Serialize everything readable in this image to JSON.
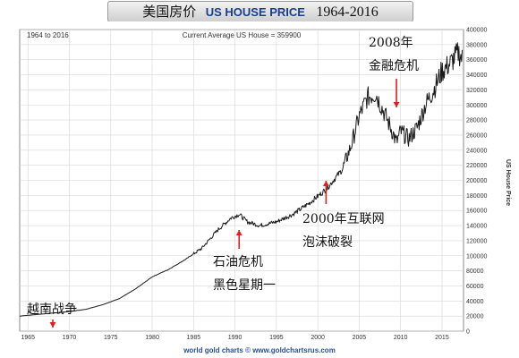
{
  "title": {
    "cn": "美国房价",
    "en": "US HOUSE PRICE",
    "years": "1964-2016"
  },
  "chart_data": {
    "type": "line",
    "range_label": "1964 to 2016",
    "current_label": "Current Average US House = 359900",
    "ylabel": "US House Price",
    "footer": "world gold charts © www.goldchartsrus.com",
    "xlim": [
      1964,
      2017.6
    ],
    "ylim": [
      0,
      400000
    ],
    "x_ticks": [
      1965,
      1970,
      1975,
      1980,
      1985,
      1990,
      1995,
      2000,
      2005,
      2010,
      2015
    ],
    "y_ticks": [
      0,
      20000,
      40000,
      60000,
      80000,
      100000,
      120000,
      140000,
      160000,
      180000,
      200000,
      220000,
      240000,
      260000,
      280000,
      300000,
      320000,
      340000,
      360000,
      380000,
      400000
    ],
    "grid": true,
    "series": [
      {
        "x": [
          1964,
          1966,
          1968,
          1970,
          1972,
          1974,
          1976,
          1978,
          1980,
          1982,
          1984,
          1986,
          1988,
          1989.5,
          1990.5,
          1991.5,
          1993,
          1995,
          1997,
          1999,
          2001,
          2003,
          2004,
          2005,
          2006,
          2007,
          2008,
          2009,
          2009.5,
          2010,
          2011,
          2012,
          2013,
          2014,
          2015,
          2016,
          2017,
          2017.5
        ],
        "y": [
          20000,
          22000,
          24000,
          26000,
          29000,
          35000,
          43000,
          56000,
          72000,
          82000,
          95000,
          110000,
          135000,
          150000,
          155000,
          145000,
          140000,
          145000,
          155000,
          170000,
          188000,
          215000,
          245000,
          285000,
          310000,
          315000,
          290000,
          265000,
          250000,
          265000,
          255000,
          270000,
          300000,
          320000,
          345000,
          355000,
          370000,
          359900
        ]
      }
    ],
    "annotations": [
      {
        "lines": [
          "越南战争"
        ],
        "year": 1968
      },
      {
        "lines": [
          "石油危机",
          "黑色星期一"
        ],
        "year": 1990.5
      },
      {
        "lines": [
          "2000年互联网",
          "泡沫破裂"
        ],
        "year": 2001
      },
      {
        "lines": [
          "2008年",
          "金融危机"
        ],
        "year": 2009.5
      }
    ],
    "colors": {
      "line": "#1a1a1a",
      "arrow": "#e02020",
      "grid": "#d6d6d6",
      "footer": "#2a4f9a"
    }
  }
}
